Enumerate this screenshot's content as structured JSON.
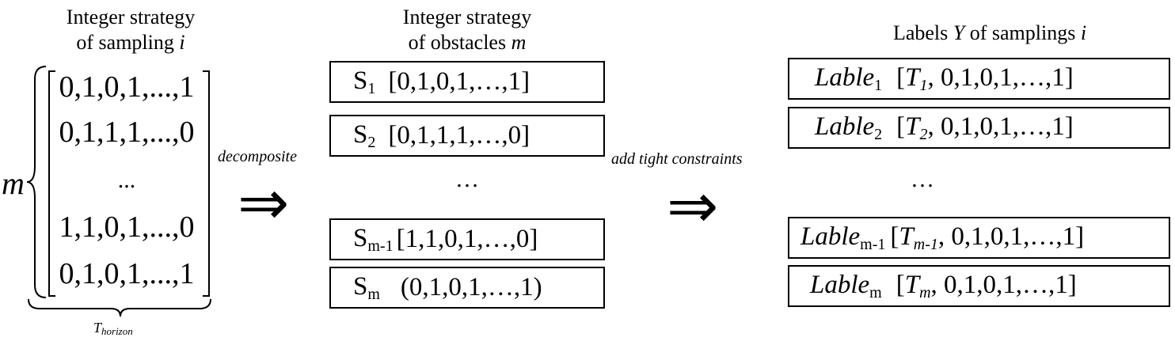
{
  "left_header": {
    "line1": "Integer strategy",
    "line2_text": "of sampling ",
    "line2_var": "i"
  },
  "matrix": {
    "rows": [
      "0,1,0,1,...,1",
      "0,1,1,1,...,0",
      "...",
      "1,1,0,1,...,0",
      "0,1,0,1,...,1"
    ],
    "row_label": "m",
    "bottom_label_main": "T",
    "bottom_label_sub": "horizon"
  },
  "arrow1": {
    "label": "decomposite",
    "symbol": "⇒"
  },
  "middle_header": {
    "line1": "Integer strategy",
    "line2_text": "of obstacles ",
    "line2_var": "m"
  },
  "obstacles": [
    {
      "name": "S",
      "sub": "1",
      "value": "[0,1,0,1,…,1]"
    },
    {
      "name": "S",
      "sub": "2",
      "value": "[0,1,1,1,…,0]"
    },
    {
      "name": "S",
      "sub": "m-1",
      "value": "[1,1,0,1,…,0]"
    },
    {
      "name": "S",
      "sub": "m",
      "value": "(0,1,0,1,…,1)"
    }
  ],
  "middle_ellipsis": "…",
  "arrow2": {
    "label": "add tight constraints",
    "symbol": "⇒"
  },
  "right_header": {
    "text1": "Labels ",
    "var1": "Y",
    "text2": " of samplings ",
    "var2": "i"
  },
  "labels": [
    {
      "name": "Lable",
      "sub": "1",
      "t_main": "T",
      "t_sub": "1",
      "value": ", 0,1,0,1,…,1]"
    },
    {
      "name": "Lable",
      "sub": "2",
      "t_main": "T",
      "t_sub": "2",
      "value": ", 0,1,0,1,…,1]"
    },
    {
      "name": "Lable",
      "sub": "m-1",
      "t_main": "T",
      "t_sub": "m-1",
      "value": ", 0,1,0,1,…,1]"
    },
    {
      "name": "Lable",
      "sub": "m",
      "t_main": "T",
      "t_sub": "m",
      "value": ", 0,1,0,1,…,1]"
    }
  ],
  "right_ellipsis": "…"
}
